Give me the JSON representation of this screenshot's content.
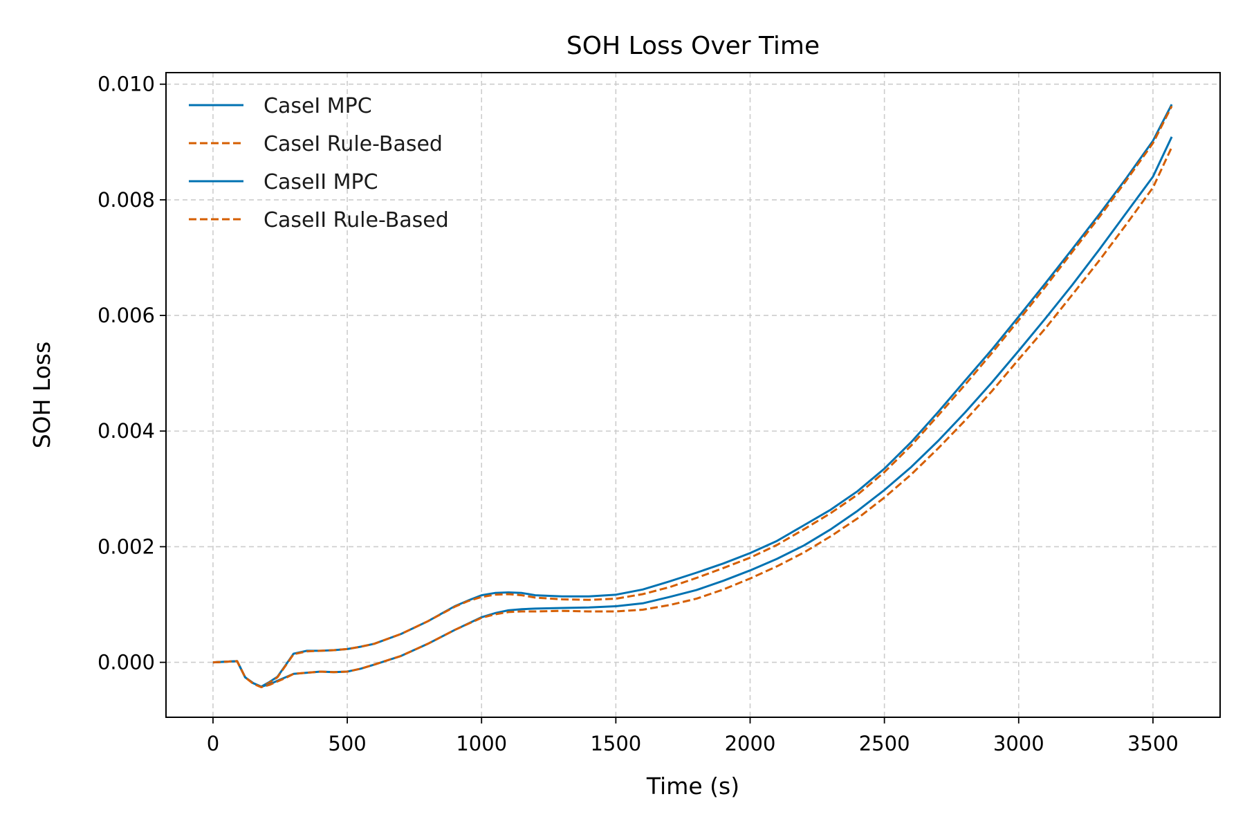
{
  "chart_data": {
    "type": "line",
    "title": "SOH Loss Over Time",
    "xlabel": "Time (s)",
    "ylabel": "SOH Loss",
    "xlim": [
      -175,
      3750
    ],
    "ylim": [
      -0.00095,
      0.0102
    ],
    "xticks": [
      0,
      500,
      1000,
      1500,
      2000,
      2500,
      3000,
      3500
    ],
    "xtick_labels": [
      "0",
      "500",
      "1000",
      "1500",
      "2000",
      "2500",
      "3000",
      "3500"
    ],
    "yticks": [
      0.0,
      0.002,
      0.004,
      0.006,
      0.008,
      0.01
    ],
    "ytick_labels": [
      "0.000",
      "0.002",
      "0.004",
      "0.006",
      "0.008",
      "0.010"
    ],
    "grid": true,
    "legend_position": "top-left",
    "colors": {
      "mpc": "#0072B2",
      "rule": "#D55E00"
    },
    "series": [
      {
        "name": "CaseI MPC",
        "style": "solid",
        "color": "#0072B2",
        "x": [
          0,
          90,
          120,
          150,
          180,
          210,
          240,
          270,
          300,
          350,
          400,
          450,
          500,
          550,
          600,
          700,
          800,
          900,
          950,
          1000,
          1050,
          1100,
          1150,
          1200,
          1300,
          1400,
          1500,
          1600,
          1700,
          1800,
          1900,
          2000,
          2100,
          2200,
          2300,
          2400,
          2500,
          2600,
          2700,
          2800,
          2900,
          3000,
          3100,
          3200,
          3300,
          3400,
          3500,
          3570
        ],
        "y": [
          0.0,
          2e-05,
          -0.00026,
          -0.00036,
          -0.00042,
          -0.00034,
          -0.00025,
          -5e-05,
          0.00015,
          0.0002,
          0.0002,
          0.00021,
          0.00023,
          0.00027,
          0.00032,
          0.00049,
          0.00071,
          0.00097,
          0.00107,
          0.00116,
          0.0012,
          0.00121,
          0.0012,
          0.00116,
          0.00114,
          0.00114,
          0.00117,
          0.00126,
          0.0014,
          0.00155,
          0.00171,
          0.00189,
          0.0021,
          0.00237,
          0.00264,
          0.00296,
          0.00335,
          0.00381,
          0.00433,
          0.00487,
          0.00541,
          0.00598,
          0.00656,
          0.00715,
          0.00775,
          0.00837,
          0.00902,
          0.00965
        ]
      },
      {
        "name": "CaseI Rule-Based",
        "style": "dashed",
        "color": "#D55E00",
        "x": [
          0,
          90,
          120,
          150,
          180,
          210,
          240,
          270,
          300,
          350,
          400,
          450,
          500,
          550,
          600,
          700,
          800,
          900,
          950,
          1000,
          1050,
          1100,
          1150,
          1200,
          1300,
          1400,
          1500,
          1600,
          1700,
          1800,
          1900,
          2000,
          2100,
          2200,
          2300,
          2400,
          2500,
          2600,
          2700,
          2800,
          2900,
          3000,
          3100,
          3200,
          3300,
          3400,
          3500,
          3570
        ],
        "y": [
          0.0,
          2e-05,
          -0.00026,
          -0.00037,
          -0.00043,
          -0.00035,
          -0.00026,
          -6e-05,
          0.00014,
          0.00019,
          0.0002,
          0.00021,
          0.00023,
          0.00027,
          0.00032,
          0.00049,
          0.00071,
          0.00096,
          0.00106,
          0.00113,
          0.00117,
          0.00118,
          0.00116,
          0.00112,
          0.00109,
          0.00108,
          0.0011,
          0.00118,
          0.0013,
          0.00146,
          0.00163,
          0.00181,
          0.00203,
          0.0023,
          0.00258,
          0.0029,
          0.00329,
          0.00375,
          0.00427,
          0.0048,
          0.00535,
          0.00592,
          0.0065,
          0.0071,
          0.0077,
          0.00833,
          0.00898,
          0.00962
        ]
      },
      {
        "name": "CaseII MPC",
        "style": "solid",
        "color": "#0072B2",
        "x": [
          0,
          90,
          120,
          150,
          180,
          210,
          240,
          270,
          300,
          350,
          400,
          450,
          500,
          550,
          600,
          700,
          800,
          900,
          1000,
          1050,
          1100,
          1150,
          1200,
          1300,
          1400,
          1500,
          1600,
          1700,
          1800,
          1900,
          2000,
          2100,
          2200,
          2300,
          2400,
          2500,
          2600,
          2700,
          2800,
          2900,
          3000,
          3100,
          3200,
          3300,
          3400,
          3500,
          3570
        ],
        "y": [
          0.0,
          2e-05,
          -0.00026,
          -0.00036,
          -0.00042,
          -0.00038,
          -0.00032,
          -0.00026,
          -0.0002,
          -0.00018,
          -0.00016,
          -0.00017,
          -0.00016,
          -0.00011,
          -4e-05,
          0.00011,
          0.00032,
          0.00056,
          0.00078,
          0.00085,
          0.0009,
          0.00092,
          0.00093,
          0.00094,
          0.00095,
          0.00097,
          0.00102,
          0.00113,
          0.00125,
          0.00141,
          0.00159,
          0.00179,
          0.00202,
          0.0023,
          0.00262,
          0.00298,
          0.00338,
          0.00383,
          0.00432,
          0.00484,
          0.00539,
          0.00595,
          0.00653,
          0.00714,
          0.00777,
          0.0084,
          0.00909
        ]
      },
      {
        "name": "CaseII Rule-Based",
        "style": "dashed",
        "color": "#D55E00",
        "x": [
          0,
          90,
          120,
          150,
          180,
          210,
          240,
          270,
          300,
          350,
          400,
          450,
          500,
          550,
          600,
          700,
          800,
          900,
          1000,
          1050,
          1100,
          1150,
          1200,
          1300,
          1400,
          1500,
          1600,
          1700,
          1800,
          1900,
          2000,
          2100,
          2200,
          2300,
          2400,
          2500,
          2600,
          2700,
          2800,
          2900,
          3000,
          3100,
          3200,
          3300,
          3400,
          3500,
          3570
        ],
        "y": [
          0.0,
          2e-05,
          -0.00026,
          -0.00037,
          -0.00043,
          -0.00039,
          -0.00033,
          -0.00027,
          -0.0002,
          -0.00018,
          -0.00016,
          -0.00017,
          -0.00016,
          -0.00011,
          -4e-05,
          0.00011,
          0.00032,
          0.00056,
          0.00077,
          0.00083,
          0.00087,
          0.00088,
          0.00088,
          0.00089,
          0.00088,
          0.00088,
          0.00091,
          0.00099,
          0.0011,
          0.00126,
          0.00145,
          0.00166,
          0.0019,
          0.00218,
          0.00249,
          0.00285,
          0.00325,
          0.0037,
          0.00418,
          0.00469,
          0.00524,
          0.00578,
          0.00636,
          0.00695,
          0.00757,
          0.00821,
          0.00891
        ]
      }
    ]
  }
}
